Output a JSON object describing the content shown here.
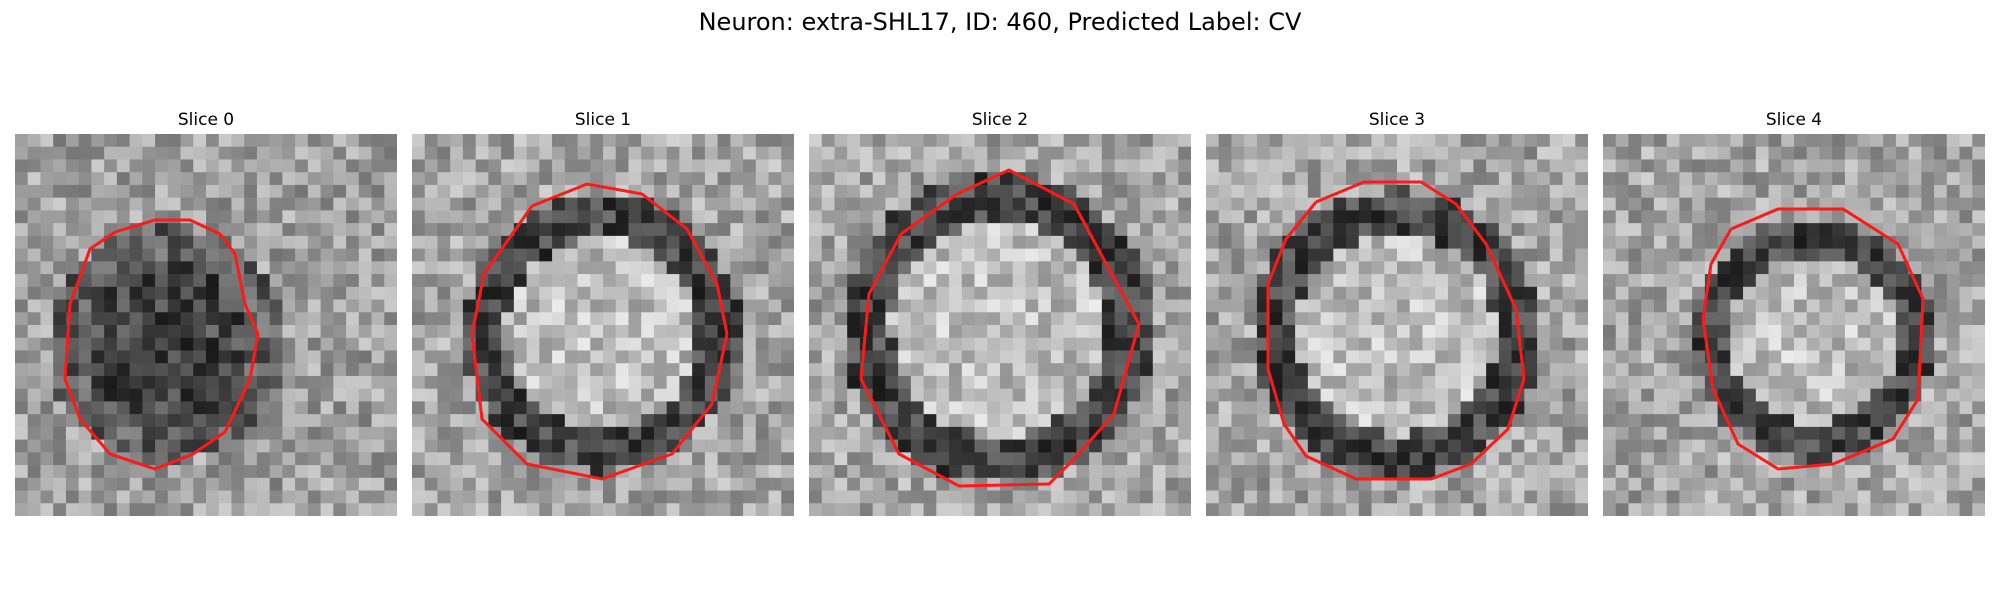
{
  "figure": {
    "title": "Neuron: extra-SHL17, ID: 460, Predicted Label: CV"
  },
  "panels": [
    {
      "title": "Slice 0"
    },
    {
      "title": "Slice 1"
    },
    {
      "title": "Slice 2"
    },
    {
      "title": "Slice 3"
    },
    {
      "title": "Slice 4"
    }
  ],
  "colors": {
    "contour": "#ff1a1a",
    "colormap": "grayscale"
  }
}
